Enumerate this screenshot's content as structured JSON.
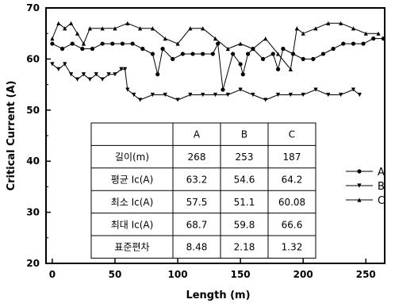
{
  "chart_data": {
    "type": "line",
    "xlabel": "Length (m)",
    "ylabel": "Critical Current (A)",
    "xlim": [
      -5,
      265
    ],
    "ylim": [
      20,
      70
    ],
    "xticks": [
      "0",
      "50",
      "100",
      "150",
      "200",
      "250"
    ],
    "yticks": [
      "20",
      "30",
      "40",
      "50",
      "60",
      "70"
    ],
    "legend_position": "right",
    "series": [
      {
        "name": "A",
        "marker": "circle",
        "x": [
          0,
          8,
          16,
          24,
          32,
          40,
          48,
          56,
          64,
          72,
          80,
          84,
          88,
          96,
          104,
          112,
          120,
          128,
          132,
          136,
          144,
          150,
          152,
          156,
          160,
          168,
          176,
          180,
          184,
          192,
          200,
          208,
          216,
          224,
          232,
          240,
          248,
          256,
          264
        ],
        "y": [
          63,
          62,
          63,
          62,
          62,
          63,
          63,
          63,
          63,
          62,
          61,
          57,
          62,
          60,
          61,
          61,
          61,
          61,
          63,
          54,
          61,
          59,
          57,
          61,
          62,
          60,
          61,
          58,
          62,
          61,
          60,
          60,
          61,
          62,
          63,
          63,
          63,
          64,
          64
        ]
      },
      {
        "name": "B",
        "marker": "triangle-down",
        "x": [
          0,
          5,
          10,
          15,
          20,
          25,
          30,
          35,
          40,
          45,
          50,
          55,
          58,
          60,
          65,
          70,
          80,
          90,
          100,
          110,
          120,
          130,
          140,
          150,
          160,
          170,
          180,
          190,
          200,
          210,
          220,
          230,
          240,
          245
        ],
        "y": [
          59,
          58,
          59,
          57,
          56,
          57,
          56,
          57,
          56,
          57,
          57,
          58,
          58,
          54,
          53,
          52,
          53,
          53,
          52,
          53,
          53,
          53,
          53,
          54,
          53,
          52,
          53,
          53,
          53,
          54,
          53,
          53,
          54,
          53
        ]
      },
      {
        "name": "C",
        "marker": "triangle-up",
        "x": [
          0,
          5,
          10,
          15,
          20,
          25,
          30,
          40,
          50,
          60,
          70,
          80,
          90,
          100,
          110,
          120,
          130,
          140,
          150,
          160,
          170,
          180,
          190,
          195,
          200,
          210,
          220,
          230,
          240,
          250,
          260
        ],
        "y": [
          64,
          67,
          66,
          67,
          65,
          63,
          66,
          66,
          66,
          67,
          66,
          66,
          64,
          63,
          66,
          66,
          64,
          62,
          63,
          62,
          64,
          61,
          58,
          66,
          65,
          66,
          67,
          67,
          66,
          65,
          65
        ]
      }
    ],
    "table": {
      "headers": [
        "",
        "A",
        "B",
        "C"
      ],
      "rows": [
        [
          "길이(m)",
          "268",
          "253",
          "187"
        ],
        [
          "평균 Ic(A)",
          "63.2",
          "54.6",
          "64.2"
        ],
        [
          "최소 Ic(A)",
          "57.5",
          "51.1",
          "60.08"
        ],
        [
          "최대 Ic(A)",
          "68.7",
          "59.8",
          "66.6"
        ],
        [
          "표준편차",
          "8.48",
          "2.18",
          "1.32"
        ]
      ]
    },
    "colors": {
      "line": "#000000",
      "background": "#ffffff"
    }
  }
}
